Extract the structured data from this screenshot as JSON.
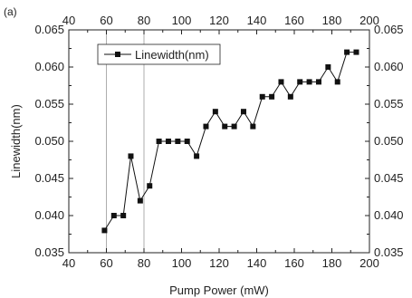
{
  "panel_label": "(a)",
  "chart_data": {
    "type": "line",
    "xlabel": "Pump Power (mW)",
    "ylabel": "Linewidth(nm)",
    "xlim": [
      40,
      200
    ],
    "ylim": [
      0.035,
      0.065
    ],
    "x_ticks": [
      40,
      60,
      80,
      100,
      120,
      140,
      160,
      180,
      200
    ],
    "y_ticks": [
      "0.035",
      "0.040",
      "0.045",
      "0.050",
      "0.055",
      "0.060",
      "0.065"
    ],
    "grid_x": [
      60,
      80
    ],
    "grid": "vertical lines at x=60 and x=80",
    "legend": {
      "placement": "top-left",
      "entries": [
        "Linewidth(nm)"
      ]
    },
    "marker": "square",
    "line_style": "solid",
    "series_color": "#111111",
    "series": [
      {
        "name": "Linewidth(nm)",
        "x": [
          59,
          64,
          69,
          73,
          78,
          83,
          88,
          93,
          98,
          103,
          108,
          113,
          118,
          123,
          128,
          133,
          138,
          143,
          148,
          153,
          158,
          163,
          168,
          173,
          178,
          183,
          188,
          193
        ],
        "y": [
          0.038,
          0.04,
          0.04,
          0.048,
          0.042,
          0.044,
          0.05,
          0.05,
          0.05,
          0.05,
          0.048,
          0.052,
          0.054,
          0.052,
          0.052,
          0.054,
          0.052,
          0.056,
          0.056,
          0.058,
          0.056,
          0.058,
          0.058,
          0.058,
          0.06,
          0.058,
          0.062,
          0.062
        ]
      }
    ]
  }
}
